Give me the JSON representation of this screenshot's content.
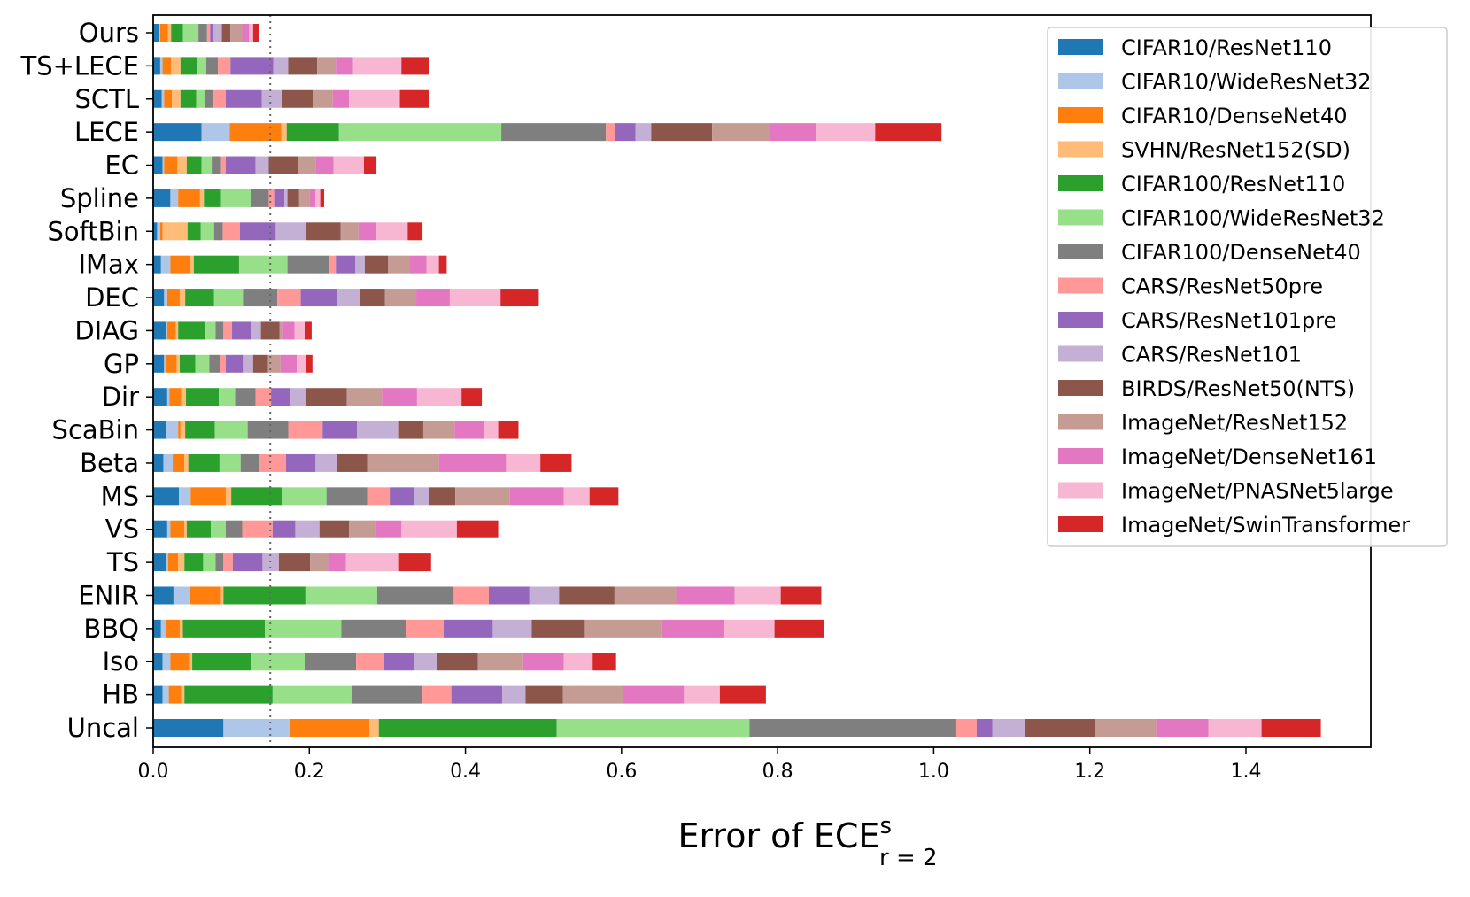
{
  "chart_data": {
    "type": "bar",
    "orientation": "horizontal",
    "stacked": true,
    "xlabel_main": "Error of ECE",
    "xlabel_sup": "s",
    "xlabel_sub": "r = 2",
    "xlim": [
      0.0,
      1.56
    ],
    "xticks": [
      "0.0",
      "0.2",
      "0.4",
      "0.6",
      "0.8",
      "1.0",
      "1.2",
      "1.4"
    ],
    "xtick_values": [
      0.0,
      0.2,
      0.4,
      0.6,
      0.8,
      1.0,
      1.2,
      1.4
    ],
    "reference_line": 0.15,
    "grid": false,
    "legend_position": "top-right",
    "categories": [
      "Ours",
      "TS+LECE",
      "SCTL",
      "LECE",
      "EC",
      "Spline",
      "SoftBin",
      "IMax",
      "DEC",
      "DIAG",
      "GP",
      "Dir",
      "ScaBin",
      "Beta",
      "MS",
      "VS",
      "TS",
      "ENIR",
      "BBQ",
      "Iso",
      "HB",
      "Uncal"
    ],
    "series": [
      {
        "name": "CIFAR10/ResNet110",
        "color": "#1f77b4",
        "values": [
          0.007,
          0.009,
          0.011,
          0.062,
          0.012,
          0.022,
          0.005,
          0.01,
          0.014,
          0.016,
          0.014,
          0.018,
          0.016,
          0.013,
          0.033,
          0.018,
          0.016,
          0.026,
          0.01,
          0.012,
          0.012,
          0.09
        ]
      },
      {
        "name": "CIFAR10/WideResNet32",
        "color": "#aec7e8",
        "values": [
          0.002,
          0.003,
          0.003,
          0.036,
          0.002,
          0.01,
          0.004,
          0.012,
          0.004,
          0.002,
          0.003,
          0.003,
          0.016,
          0.012,
          0.015,
          0.004,
          0.003,
          0.021,
          0.006,
          0.01,
          0.008,
          0.085
        ]
      },
      {
        "name": "CIFAR10/DenseNet40",
        "color": "#ff7f0e",
        "values": [
          0.01,
          0.011,
          0.01,
          0.066,
          0.017,
          0.028,
          0.003,
          0.026,
          0.016,
          0.011,
          0.013,
          0.015,
          0.003,
          0.015,
          0.045,
          0.018,
          0.013,
          0.04,
          0.018,
          0.024,
          0.016,
          0.102
        ]
      },
      {
        "name": "SVHN/ResNet152(SD)",
        "color": "#ffbb78",
        "values": [
          0.004,
          0.012,
          0.011,
          0.007,
          0.012,
          0.005,
          0.032,
          0.004,
          0.007,
          0.003,
          0.004,
          0.006,
          0.006,
          0.005,
          0.007,
          0.003,
          0.008,
          0.003,
          0.004,
          0.004,
          0.004,
          0.012
        ]
      },
      {
        "name": "CIFAR100/ResNet110",
        "color": "#2ca02c",
        "values": [
          0.015,
          0.021,
          0.02,
          0.067,
          0.019,
          0.022,
          0.017,
          0.058,
          0.037,
          0.035,
          0.02,
          0.042,
          0.038,
          0.04,
          0.065,
          0.031,
          0.024,
          0.105,
          0.105,
          0.075,
          0.113,
          0.228
        ]
      },
      {
        "name": "CIFAR100/WideResNet32",
        "color": "#98df8a",
        "values": [
          0.02,
          0.012,
          0.011,
          0.208,
          0.013,
          0.038,
          0.017,
          0.062,
          0.037,
          0.013,
          0.018,
          0.021,
          0.042,
          0.027,
          0.057,
          0.019,
          0.016,
          0.092,
          0.098,
          0.069,
          0.101,
          0.247
        ]
      },
      {
        "name": "CIFAR100/DenseNet40",
        "color": "#7f7f7f",
        "values": [
          0.011,
          0.015,
          0.01,
          0.134,
          0.012,
          0.023,
          0.011,
          0.054,
          0.044,
          0.01,
          0.014,
          0.026,
          0.052,
          0.024,
          0.052,
          0.021,
          0.01,
          0.098,
          0.083,
          0.066,
          0.091,
          0.265
        ]
      },
      {
        "name": "CARS/ResNet50pre",
        "color": "#ff9896",
        "values": [
          0.004,
          0.016,
          0.017,
          0.012,
          0.006,
          0.007,
          0.022,
          0.008,
          0.03,
          0.011,
          0.007,
          0.02,
          0.044,
          0.034,
          0.029,
          0.039,
          0.012,
          0.045,
          0.048,
          0.036,
          0.037,
          0.026
        ]
      },
      {
        "name": "CARS/ResNet101pre",
        "color": "#9467bd",
        "values": [
          0.004,
          0.055,
          0.046,
          0.026,
          0.038,
          0.013,
          0.046,
          0.025,
          0.046,
          0.024,
          0.022,
          0.024,
          0.044,
          0.038,
          0.031,
          0.029,
          0.038,
          0.052,
          0.063,
          0.039,
          0.065,
          0.02
        ]
      },
      {
        "name": "CARS/ResNet101",
        "color": "#c5b0d5",
        "values": [
          0.011,
          0.019,
          0.026,
          0.02,
          0.017,
          0.004,
          0.039,
          0.012,
          0.03,
          0.013,
          0.013,
          0.02,
          0.054,
          0.028,
          0.02,
          0.031,
          0.021,
          0.038,
          0.05,
          0.029,
          0.03,
          0.042
        ]
      },
      {
        "name": "BIRDS/ResNet50(NTS)",
        "color": "#8c564b",
        "values": [
          0.011,
          0.037,
          0.04,
          0.078,
          0.037,
          0.015,
          0.044,
          0.03,
          0.032,
          0.024,
          0.019,
          0.053,
          0.031,
          0.038,
          0.033,
          0.038,
          0.04,
          0.071,
          0.068,
          0.052,
          0.048,
          0.09
        ]
      },
      {
        "name": "ImageNet/ResNet152",
        "color": "#c49c94",
        "values": [
          0.015,
          0.024,
          0.025,
          0.073,
          0.023,
          0.013,
          0.023,
          0.027,
          0.04,
          0.004,
          0.016,
          0.045,
          0.04,
          0.092,
          0.07,
          0.034,
          0.023,
          0.079,
          0.098,
          0.058,
          0.077,
          0.078
        ]
      },
      {
        "name": "ImageNet/DenseNet161",
        "color": "#e377c2",
        "values": [
          0.009,
          0.022,
          0.021,
          0.06,
          0.023,
          0.008,
          0.023,
          0.022,
          0.043,
          0.015,
          0.021,
          0.045,
          0.038,
          0.086,
          0.069,
          0.033,
          0.023,
          0.075,
          0.081,
          0.052,
          0.078,
          0.067
        ]
      },
      {
        "name": "ImageNet/PNASNet5large",
        "color": "#f7b6d2",
        "values": [
          0.005,
          0.062,
          0.065,
          0.076,
          0.039,
          0.006,
          0.04,
          0.016,
          0.065,
          0.013,
          0.012,
          0.057,
          0.018,
          0.044,
          0.033,
          0.071,
          0.068,
          0.059,
          0.064,
          0.037,
          0.046,
          0.068
        ]
      },
      {
        "name": "ImageNet/SwinTransformer",
        "color": "#d62728",
        "values": [
          0.007,
          0.035,
          0.038,
          0.085,
          0.016,
          0.005,
          0.019,
          0.01,
          0.049,
          0.009,
          0.008,
          0.026,
          0.026,
          0.04,
          0.037,
          0.053,
          0.041,
          0.052,
          0.063,
          0.03,
          0.059,
          0.076
        ]
      }
    ]
  }
}
